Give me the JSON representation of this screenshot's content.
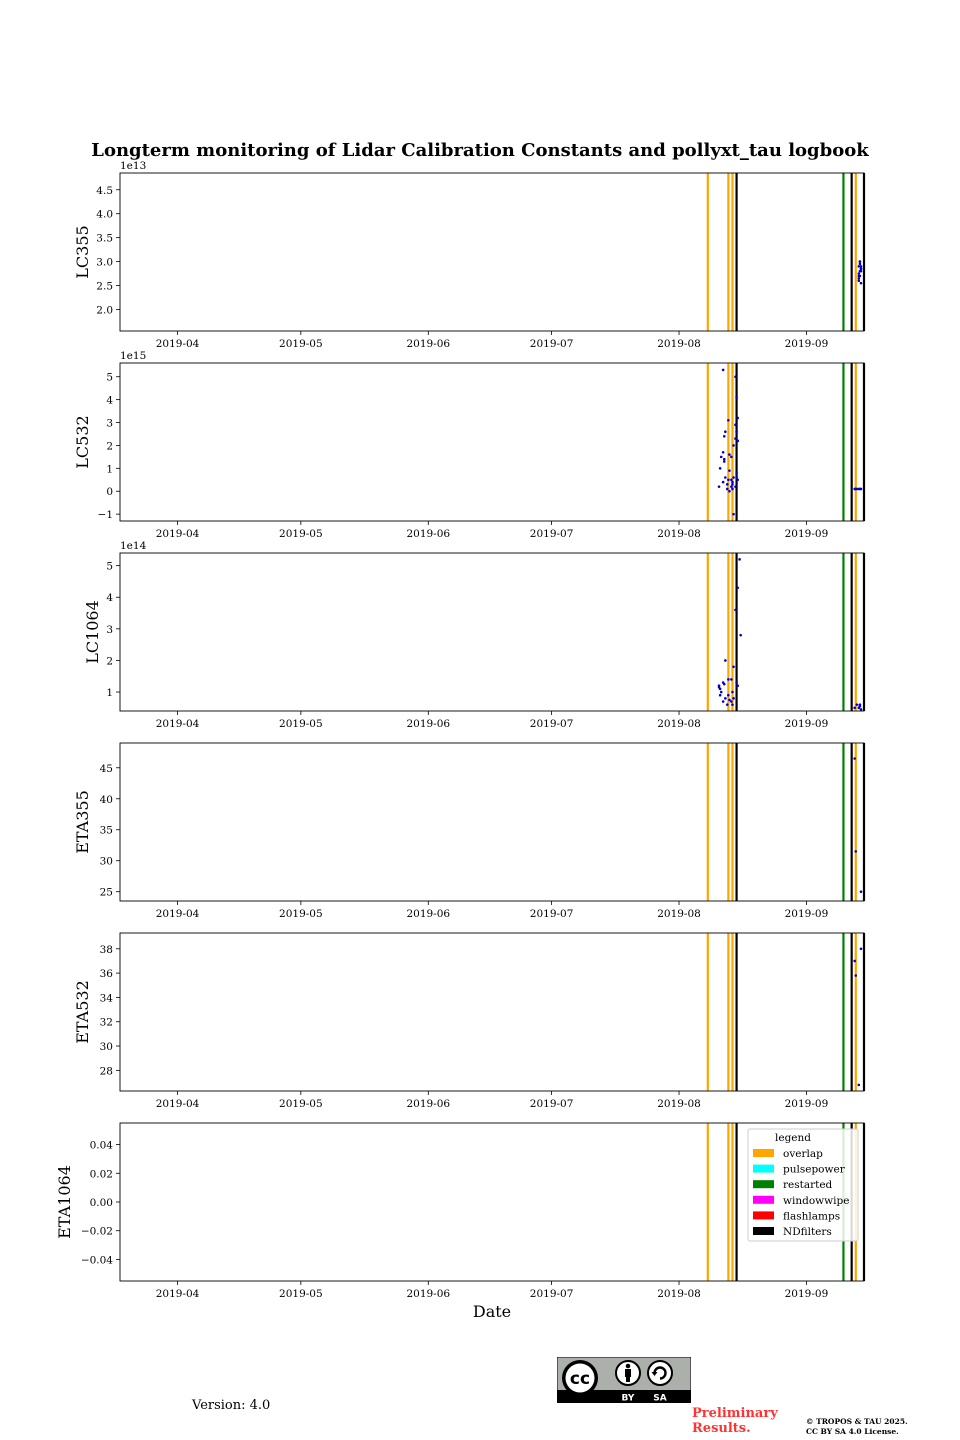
{
  "figure": {
    "title": "Longterm monitoring of Lidar Calibration Constants and pollyxt_tau logbook",
    "version_text": "Version: 4.0",
    "preliminary_text": "Preliminary Results.",
    "copyright_line1": "© TROPOS & TAU 2025.",
    "copyright_line2": "CC BY SA 4.0 License.",
    "license_badge": {
      "icon": "cc-by-sa-icon",
      "cc_label": "cc",
      "by_label": "BY",
      "sa_label": "SA"
    }
  },
  "chart_data": {
    "type": "scatter",
    "xlabel": "Date",
    "x_ticks": [
      "2019-04",
      "2019-05",
      "2019-06",
      "2019-07",
      "2019-08",
      "2019-09"
    ],
    "x_tick_dates": [
      "2019-04-01",
      "2019-05-01",
      "2019-06-01",
      "2019-07-01",
      "2019-08-01",
      "2019-09-01"
    ],
    "xlim": [
      "2019-03-18",
      "2019-09-15"
    ],
    "marker_color": "#0000cc",
    "logbook_events": [
      {
        "type": "overlap",
        "date": "2019-08-08"
      },
      {
        "type": "overlap",
        "date": "2019-08-13"
      },
      {
        "type": "overlap",
        "date": "2019-08-14"
      },
      {
        "type": "NDfilters",
        "date": "2019-08-15"
      },
      {
        "type": "restarted",
        "date": "2019-09-10"
      },
      {
        "type": "NDfilters",
        "date": "2019-09-12"
      },
      {
        "type": "overlap",
        "date": "2019-09-13"
      },
      {
        "type": "NDfilters",
        "date": "2019-09-15"
      }
    ],
    "legend": {
      "title": "legend",
      "placement": "upper right of ETA1064 panel",
      "entries": [
        {
          "label": "overlap",
          "color": "#ffa500"
        },
        {
          "label": "pulsepower",
          "color": "#00ffff"
        },
        {
          "label": "restarted",
          "color": "#008000"
        },
        {
          "label": "windowwipe",
          "color": "#ff00ff"
        },
        {
          "label": "flashlamps",
          "color": "#ff0000"
        },
        {
          "label": "NDfilters",
          "color": "#000000"
        }
      ]
    },
    "panels": [
      {
        "ylabel": "LC355",
        "exponent": "1e13",
        "ylim": [
          1.55,
          4.85
        ],
        "yticks": [
          2.0,
          2.5,
          3.0,
          3.5,
          4.0,
          4.5
        ],
        "points": [
          [
            "2019-09-14",
            2.6
          ],
          [
            "2019-09-14",
            2.7
          ],
          [
            "2019-09-14",
            2.8
          ],
          [
            "2019-09-14",
            2.9
          ],
          [
            "2019-09-14",
            3.0
          ],
          [
            "2019-09-14",
            2.85
          ],
          [
            "2019-09-14",
            2.75
          ],
          [
            "2019-09-14",
            2.95
          ],
          [
            "2019-09-14",
            2.55
          ],
          [
            "2019-09-14",
            2.65
          ],
          [
            "2019-09-14",
            2.8
          ],
          [
            "2019-09-14",
            2.9
          ],
          [
            "2019-09-14",
            2.7
          ],
          [
            "2019-09-14",
            3.0
          ],
          [
            "2019-09-14",
            2.85
          ]
        ]
      },
      {
        "ylabel": "LC532",
        "exponent": "1e15",
        "ylim": [
          -1.3,
          5.6
        ],
        "yticks": [
          -1,
          0,
          1,
          2,
          3,
          4,
          5
        ],
        "points": [
          [
            "2019-08-11",
            0.2
          ],
          [
            "2019-08-11",
            1.0
          ],
          [
            "2019-08-11",
            1.5
          ],
          [
            "2019-08-12",
            5.3
          ],
          [
            "2019-08-12",
            2.4
          ],
          [
            "2019-08-12",
            2.6
          ],
          [
            "2019-08-12",
            1.7
          ],
          [
            "2019-08-12",
            1.3
          ],
          [
            "2019-08-12",
            0.6
          ],
          [
            "2019-08-12",
            0.4
          ],
          [
            "2019-08-12",
            1.4
          ],
          [
            "2019-08-13",
            1.6
          ],
          [
            "2019-08-13",
            0.3
          ],
          [
            "2019-08-13",
            0.5
          ],
          [
            "2019-08-13",
            0.0
          ],
          [
            "2019-08-13",
            0.1
          ],
          [
            "2019-08-13",
            3.1
          ],
          [
            "2019-08-13",
            0.9
          ],
          [
            "2019-08-14",
            1.5
          ],
          [
            "2019-08-14",
            0.4
          ],
          [
            "2019-08-14",
            0.6
          ],
          [
            "2019-08-14",
            0.2
          ],
          [
            "2019-08-14",
            0.1
          ],
          [
            "2019-08-14",
            -1.0
          ],
          [
            "2019-08-14",
            0.5
          ],
          [
            "2019-08-14",
            0.3
          ],
          [
            "2019-08-14",
            2.0
          ],
          [
            "2019-08-15",
            5.0
          ],
          [
            "2019-08-15",
            4.1
          ],
          [
            "2019-08-15",
            2.2
          ],
          [
            "2019-08-15",
            2.3
          ],
          [
            "2019-08-15",
            2.6
          ],
          [
            "2019-08-15",
            3.2
          ],
          [
            "2019-08-15",
            2.9
          ],
          [
            "2019-08-15",
            0.8
          ],
          [
            "2019-08-15",
            0.5
          ],
          [
            "2019-08-15",
            0.2
          ],
          [
            "2019-08-15",
            0.6
          ],
          [
            "2019-08-15",
            2.2
          ],
          [
            "2019-09-13",
            0.1
          ],
          [
            "2019-09-13",
            0.1
          ],
          [
            "2019-09-13",
            0.1
          ],
          [
            "2019-09-14",
            0.1
          ],
          [
            "2019-09-14",
            0.1
          ],
          [
            "2019-09-14",
            0.1
          ]
        ]
      },
      {
        "ylabel": "LC1064",
        "exponent": "1e14",
        "ylim": [
          0.4,
          5.4
        ],
        "yticks": [
          1,
          2,
          3,
          4,
          5
        ],
        "points": [
          [
            "2019-08-11",
            1.2
          ],
          [
            "2019-08-11",
            1.1
          ],
          [
            "2019-08-11",
            1.0
          ],
          [
            "2019-08-11",
            1.15
          ],
          [
            "2019-08-11",
            0.9
          ],
          [
            "2019-08-12",
            2.0
          ],
          [
            "2019-08-12",
            1.3
          ],
          [
            "2019-08-12",
            1.25
          ],
          [
            "2019-08-12",
            0.8
          ],
          [
            "2019-08-12",
            0.7
          ],
          [
            "2019-08-13",
            1.4
          ],
          [
            "2019-08-13",
            0.75
          ],
          [
            "2019-08-13",
            0.6
          ],
          [
            "2019-08-13",
            0.9
          ],
          [
            "2019-08-14",
            1.8
          ],
          [
            "2019-08-14",
            1.4
          ],
          [
            "2019-08-14",
            1.0
          ],
          [
            "2019-08-14",
            0.8
          ],
          [
            "2019-08-14",
            0.7
          ],
          [
            "2019-08-14",
            0.6
          ],
          [
            "2019-08-15",
            4.3
          ],
          [
            "2019-08-15",
            3.6
          ],
          [
            "2019-08-15",
            1.3
          ],
          [
            "2019-08-15",
            1.2
          ],
          [
            "2019-08-16",
            5.2
          ],
          [
            "2019-08-16",
            2.8
          ],
          [
            "2019-09-13",
            0.6
          ],
          [
            "2019-09-13",
            0.5
          ],
          [
            "2019-09-14",
            0.55
          ],
          [
            "2019-09-14",
            0.45
          ],
          [
            "2019-09-14",
            0.5
          ],
          [
            "2019-09-14",
            0.6
          ]
        ]
      },
      {
        "ylabel": "ETA355",
        "exponent": "",
        "ylim": [
          23.5,
          49
        ],
        "yticks": [
          25,
          30,
          35,
          40,
          45
        ],
        "points": [
          [
            "2019-09-13",
            46.5
          ],
          [
            "2019-09-13",
            31.5
          ],
          [
            "2019-09-14",
            25.0
          ]
        ]
      },
      {
        "ylabel": "ETA532",
        "exponent": "",
        "ylim": [
          26.3,
          39.3
        ],
        "yticks": [
          28,
          30,
          32,
          34,
          36,
          38
        ],
        "points": [
          [
            "2019-09-13",
            37.0
          ],
          [
            "2019-09-13",
            35.8
          ],
          [
            "2019-09-14",
            38.0
          ],
          [
            "2019-09-14",
            26.8
          ]
        ]
      },
      {
        "ylabel": "ETA1064",
        "exponent": "",
        "ylim": [
          -0.055,
          0.055
        ],
        "yticks": [
          -0.04,
          -0.02,
          0.0,
          0.02,
          0.04
        ],
        "tick_labels": [
          "−0.04",
          "−0.02",
          "0.00",
          "0.02",
          "0.04"
        ],
        "points": []
      }
    ]
  }
}
